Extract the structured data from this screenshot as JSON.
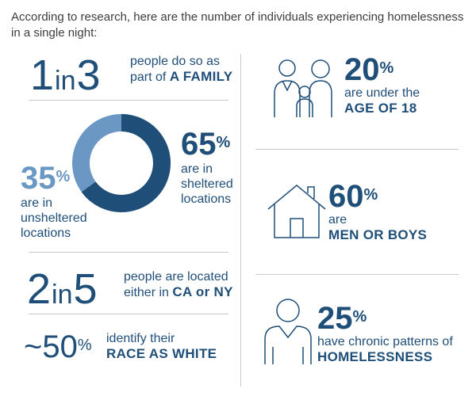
{
  "intro": "According to research, here are the number of individuals experiencing homelessness in a single night:",
  "left": {
    "family": {
      "n1": "1",
      "in": "in",
      "n2": "3",
      "line1": "people do so as",
      "line2a": "part of",
      "line2b": "A FAMILY"
    },
    "donut": {
      "sheltered_pct": "65",
      "sheltered_l1": "are in",
      "sheltered_l2": "sheltered",
      "sheltered_l3": "locations",
      "unsheltered_pct": "35",
      "unsheltered_l1": "are in",
      "unsheltered_l2": "unsheltered",
      "unsheltered_l3": "locations",
      "sheltered_value": 65,
      "unsheltered_value": 35,
      "sheltered_color": "#1f4e79",
      "unsheltered_color": "#6a97c3"
    },
    "location": {
      "n1": "2",
      "in": "in",
      "n2": "5",
      "line1": "people are located",
      "line2a": "either in",
      "line2b": "CA or NY"
    },
    "race": {
      "tilde": "~50",
      "line1": "identify their",
      "line2": "RACE AS WHITE"
    }
  },
  "right": {
    "age": {
      "pct": "20",
      "line1": "are under the",
      "line2": "AGE OF 18",
      "icon": "family-icon"
    },
    "gender": {
      "pct": "60",
      "line1": "are",
      "line2": "MEN OR BOYS",
      "icon": "house-icon"
    },
    "chronic": {
      "pct": "25",
      "line1": "have chronic patterns of",
      "line2": "HOMELESSNESS",
      "icon": "person-icon"
    }
  },
  "percent_sign": "%",
  "colors": {
    "navy": "#1f4e79",
    "light_blue": "#6a97c3",
    "divider": "#c9c9c9",
    "text_gray": "#3d3d3d"
  }
}
